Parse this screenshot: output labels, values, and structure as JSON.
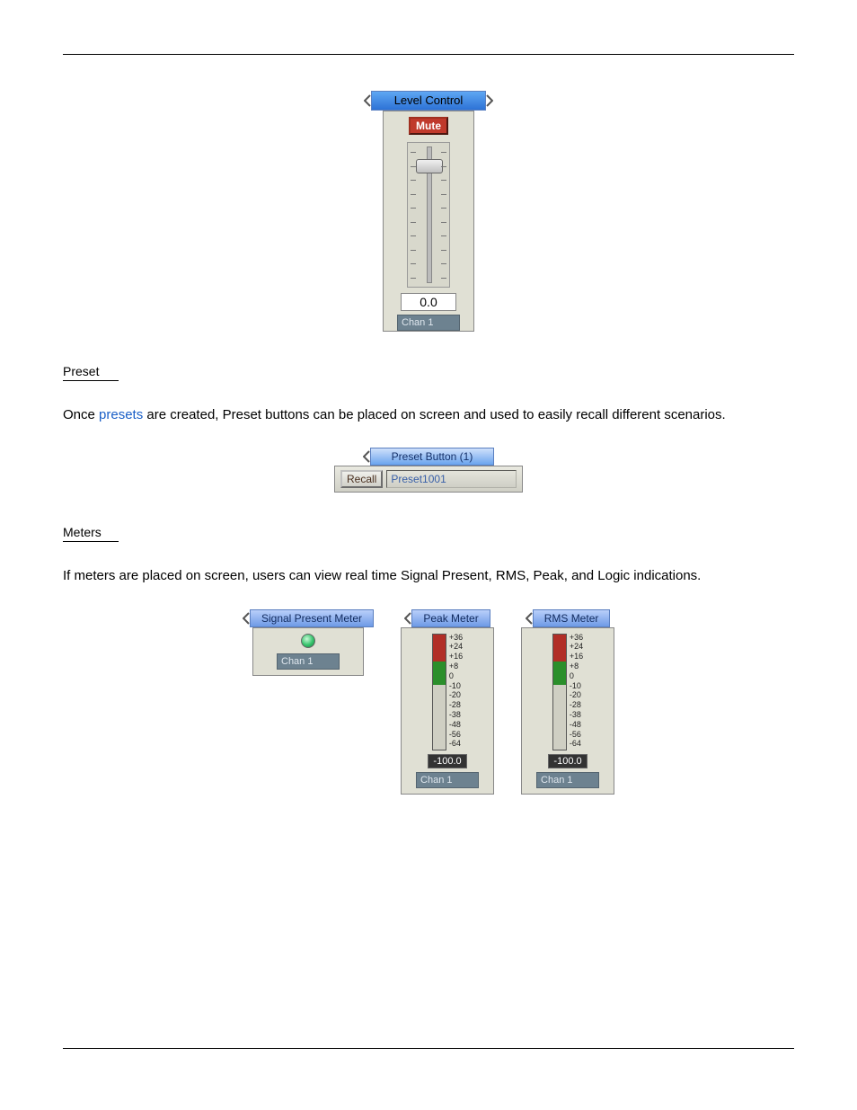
{
  "level_control": {
    "title": "Level Control",
    "mute_label": "Mute",
    "value": "0.0",
    "channel_label": "Chan  1",
    "title_bg_start": "#5ea7f3",
    "title_bg_end": "#2d72d6",
    "mute_bg": "#c0392b",
    "slider_thumb_pct": 12,
    "tick_count": 10
  },
  "preset_section": {
    "heading": "Preset",
    "paragraph_prefix": "Once ",
    "paragraph_link": "presets",
    "paragraph_suffix": " are created, Preset buttons can be placed on screen and used to easily recall different scenarios.",
    "widget_title": "Preset Button (1)",
    "recall_label": "Recall",
    "preset_name": "Preset1001"
  },
  "meters_section": {
    "heading": "Meters",
    "paragraph": "If meters are placed on screen, users can view real time Signal Present, RMS, Peak, and Logic indications.",
    "scale_labels": [
      "+36",
      "+24",
      "+16",
      "+8",
      "0",
      "-10",
      "-20",
      "-28",
      "-38",
      "-48",
      "-56",
      "-64"
    ],
    "bar_red_color": "#b12e27",
    "bar_green_color": "#2b8f2b",
    "signal_present": {
      "title": "Signal Present Meter",
      "channel_label": "Chan  1"
    },
    "peak": {
      "title": "Peak Meter",
      "value": "-100.0",
      "channel_label": "Chan  1",
      "red_height_pct": 24,
      "green_height_pct": 20
    },
    "rms": {
      "title": "RMS Meter",
      "value": "-100.0",
      "channel_label": "Chan  1",
      "red_height_pct": 24,
      "green_height_pct": 20
    }
  }
}
